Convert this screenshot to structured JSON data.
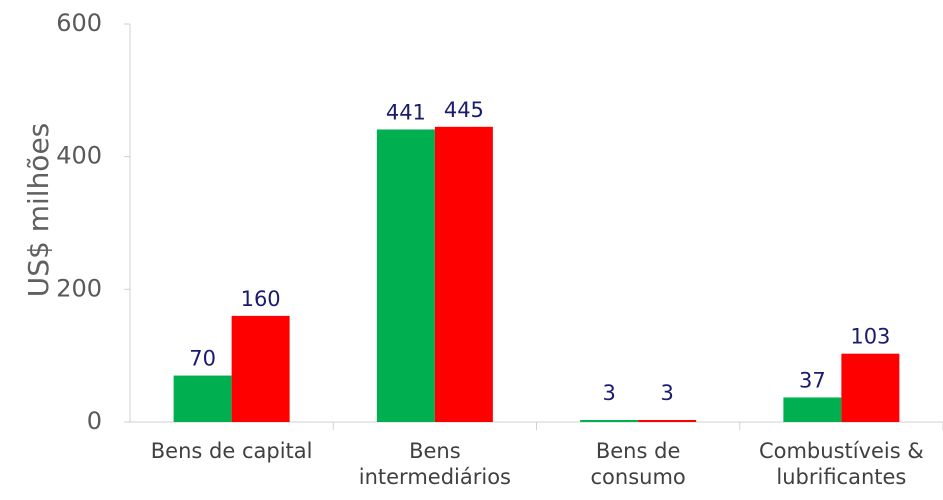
{
  "chart_data": {
    "type": "bar",
    "y_axis_label": "US$ milhões",
    "categories": [
      "Bens de capital",
      "Bens\nintermediários",
      "Bens de\nconsumo",
      "Combustíveis &\nlubrificantes"
    ],
    "series": [
      {
        "color": "#00b050",
        "values": [
          70,
          441,
          3,
          37
        ]
      },
      {
        "color": "#ff0000",
        "values": [
          160,
          445,
          3,
          103
        ]
      }
    ],
    "ylim": [
      0,
      600
    ],
    "yticks": [
      0,
      200,
      400,
      600
    ],
    "grid": false
  }
}
